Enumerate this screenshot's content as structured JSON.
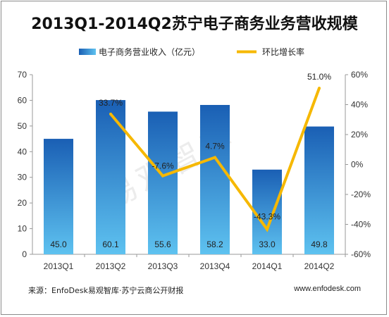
{
  "chart_data": {
    "type": "bar",
    "title": "2013Q1-2014Q2苏宁电子商务业务营收规模",
    "categories": [
      "2013Q1",
      "2013Q2",
      "2013Q3",
      "2013Q4",
      "2014Q1",
      "2014Q2"
    ],
    "series": [
      {
        "name": "电子商务营业收入（亿元）",
        "type": "bar",
        "axis": "left",
        "values": [
          45.0,
          60.1,
          55.6,
          58.2,
          33.0,
          49.8
        ],
        "labels": [
          "45.0",
          "60.1",
          "55.6",
          "58.2",
          "33.0",
          "49.8"
        ]
      },
      {
        "name": "环比增长率",
        "type": "line",
        "axis": "right",
        "values": [
          null,
          33.7,
          -7.6,
          4.7,
          -43.3,
          51.0
        ],
        "labels": [
          "",
          "33.7%",
          "-7.6%",
          "4.7%",
          "-43.3%",
          "51.0%"
        ]
      }
    ],
    "y_left": {
      "min": 0,
      "max": 70,
      "ticks": [
        0,
        10,
        20,
        30,
        40,
        50,
        60,
        70
      ],
      "tick_labels": [
        "0",
        "10",
        "20",
        "30",
        "40",
        "50",
        "60",
        "70"
      ]
    },
    "y_right": {
      "min": -60,
      "max": 60,
      "ticks": [
        -60,
        -40,
        -20,
        0,
        20,
        40,
        60
      ],
      "tick_labels": [
        "-60%",
        "-40%",
        "-20%",
        "0%",
        "20%",
        "40%",
        "60%"
      ]
    },
    "grid": false,
    "legend": "top"
  },
  "colors": {
    "bar_top": "#1a5fb4",
    "bar_bottom": "#5ec2f0",
    "line": "#f6b800"
  },
  "watermark": "易观智库",
  "source": "来源：EnfoDesk易观智库·苏宁云商公开财报",
  "site": "www.enfodesk.com"
}
